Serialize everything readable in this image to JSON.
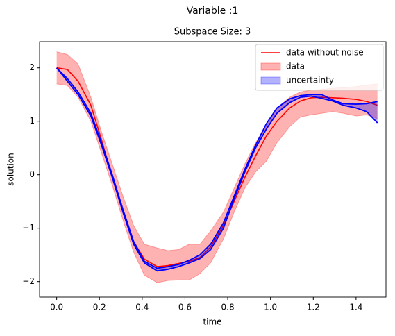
{
  "chart_data": {
    "type": "line",
    "suptitle": "Variable :1",
    "title": "Subspace Size: 3",
    "xlabel": "time",
    "ylabel": "solution",
    "x": [
      0,
      0.05,
      0.1,
      0.16,
      0.21,
      0.26,
      0.31,
      0.36,
      0.41,
      0.47,
      0.52,
      0.57,
      0.62,
      0.67,
      0.72,
      0.78,
      0.83,
      0.88,
      0.93,
      0.98,
      1.03,
      1.09,
      1.14,
      1.19,
      1.24,
      1.29,
      1.34,
      1.4,
      1.45,
      1.5
    ],
    "series": [
      {
        "name": "data without noise",
        "color": "#ff0000",
        "values": [
          2.0,
          1.97,
          1.75,
          1.3,
          0.65,
          -0.05,
          -0.7,
          -1.25,
          -1.58,
          -1.72,
          -1.7,
          -1.66,
          -1.62,
          -1.55,
          -1.35,
          -0.95,
          -0.5,
          -0.05,
          0.35,
          0.72,
          1.0,
          1.25,
          1.38,
          1.44,
          1.45,
          1.44,
          1.43,
          1.41,
          1.37,
          1.3
        ]
      }
    ],
    "bands": [
      {
        "name": "data",
        "color": "#ff0000",
        "upper": [
          2.3,
          2.25,
          2.07,
          1.45,
          0.8,
          0.2,
          -0.4,
          -0.95,
          -1.3,
          -1.37,
          -1.42,
          -1.4,
          -1.3,
          -1.3,
          -1.05,
          -0.7,
          -0.25,
          0.2,
          0.6,
          0.9,
          1.25,
          1.45,
          1.55,
          1.58,
          1.6,
          1.62,
          1.63,
          1.65,
          1.68,
          1.7
        ],
        "lower": [
          1.7,
          1.67,
          1.45,
          1.0,
          0.4,
          -0.2,
          -0.85,
          -1.45,
          -1.88,
          -2.02,
          -1.98,
          -1.97,
          -1.97,
          -1.85,
          -1.65,
          -1.2,
          -0.7,
          -0.25,
          0.05,
          0.25,
          0.6,
          0.9,
          1.08,
          1.12,
          1.15,
          1.18,
          1.15,
          1.1,
          1.12,
          1.05
        ]
      },
      {
        "name": "uncertainty",
        "color": "#0000ff",
        "upper": [
          2.0,
          1.8,
          1.55,
          1.15,
          0.6,
          0.0,
          -0.65,
          -1.25,
          -1.62,
          -1.75,
          -1.72,
          -1.68,
          -1.6,
          -1.5,
          -1.3,
          -0.9,
          -0.4,
          0.1,
          0.55,
          0.95,
          1.25,
          1.42,
          1.48,
          1.5,
          1.5,
          1.4,
          1.33,
          1.32,
          1.33,
          1.37
        ],
        "lower": [
          2.0,
          1.75,
          1.5,
          1.1,
          0.55,
          -0.05,
          -0.7,
          -1.3,
          -1.65,
          -1.8,
          -1.77,
          -1.72,
          -1.65,
          -1.57,
          -1.4,
          -1.0,
          -0.45,
          0.05,
          0.5,
          0.85,
          1.15,
          1.35,
          1.45,
          1.47,
          1.43,
          1.38,
          1.3,
          1.25,
          1.18,
          0.97
        ]
      }
    ],
    "xlim": [
      -0.08,
      1.54
    ],
    "ylim": [
      -2.29,
      2.49
    ],
    "xticks": [
      {
        "value": 0,
        "label": "0.0"
      },
      {
        "value": 0.2,
        "label": "0.2"
      },
      {
        "value": 0.4,
        "label": "0.4"
      },
      {
        "value": 0.6,
        "label": "0.6"
      },
      {
        "value": 0.8,
        "label": "0.8"
      },
      {
        "value": 1.0,
        "label": "1.0"
      },
      {
        "value": 1.2,
        "label": "1.2"
      },
      {
        "value": 1.4,
        "label": "1.4"
      }
    ],
    "yticks": [
      {
        "value": -2,
        "label": "−2"
      },
      {
        "value": -1,
        "label": "−1"
      },
      0,
      1,
      2
    ],
    "legend": "upper right"
  }
}
